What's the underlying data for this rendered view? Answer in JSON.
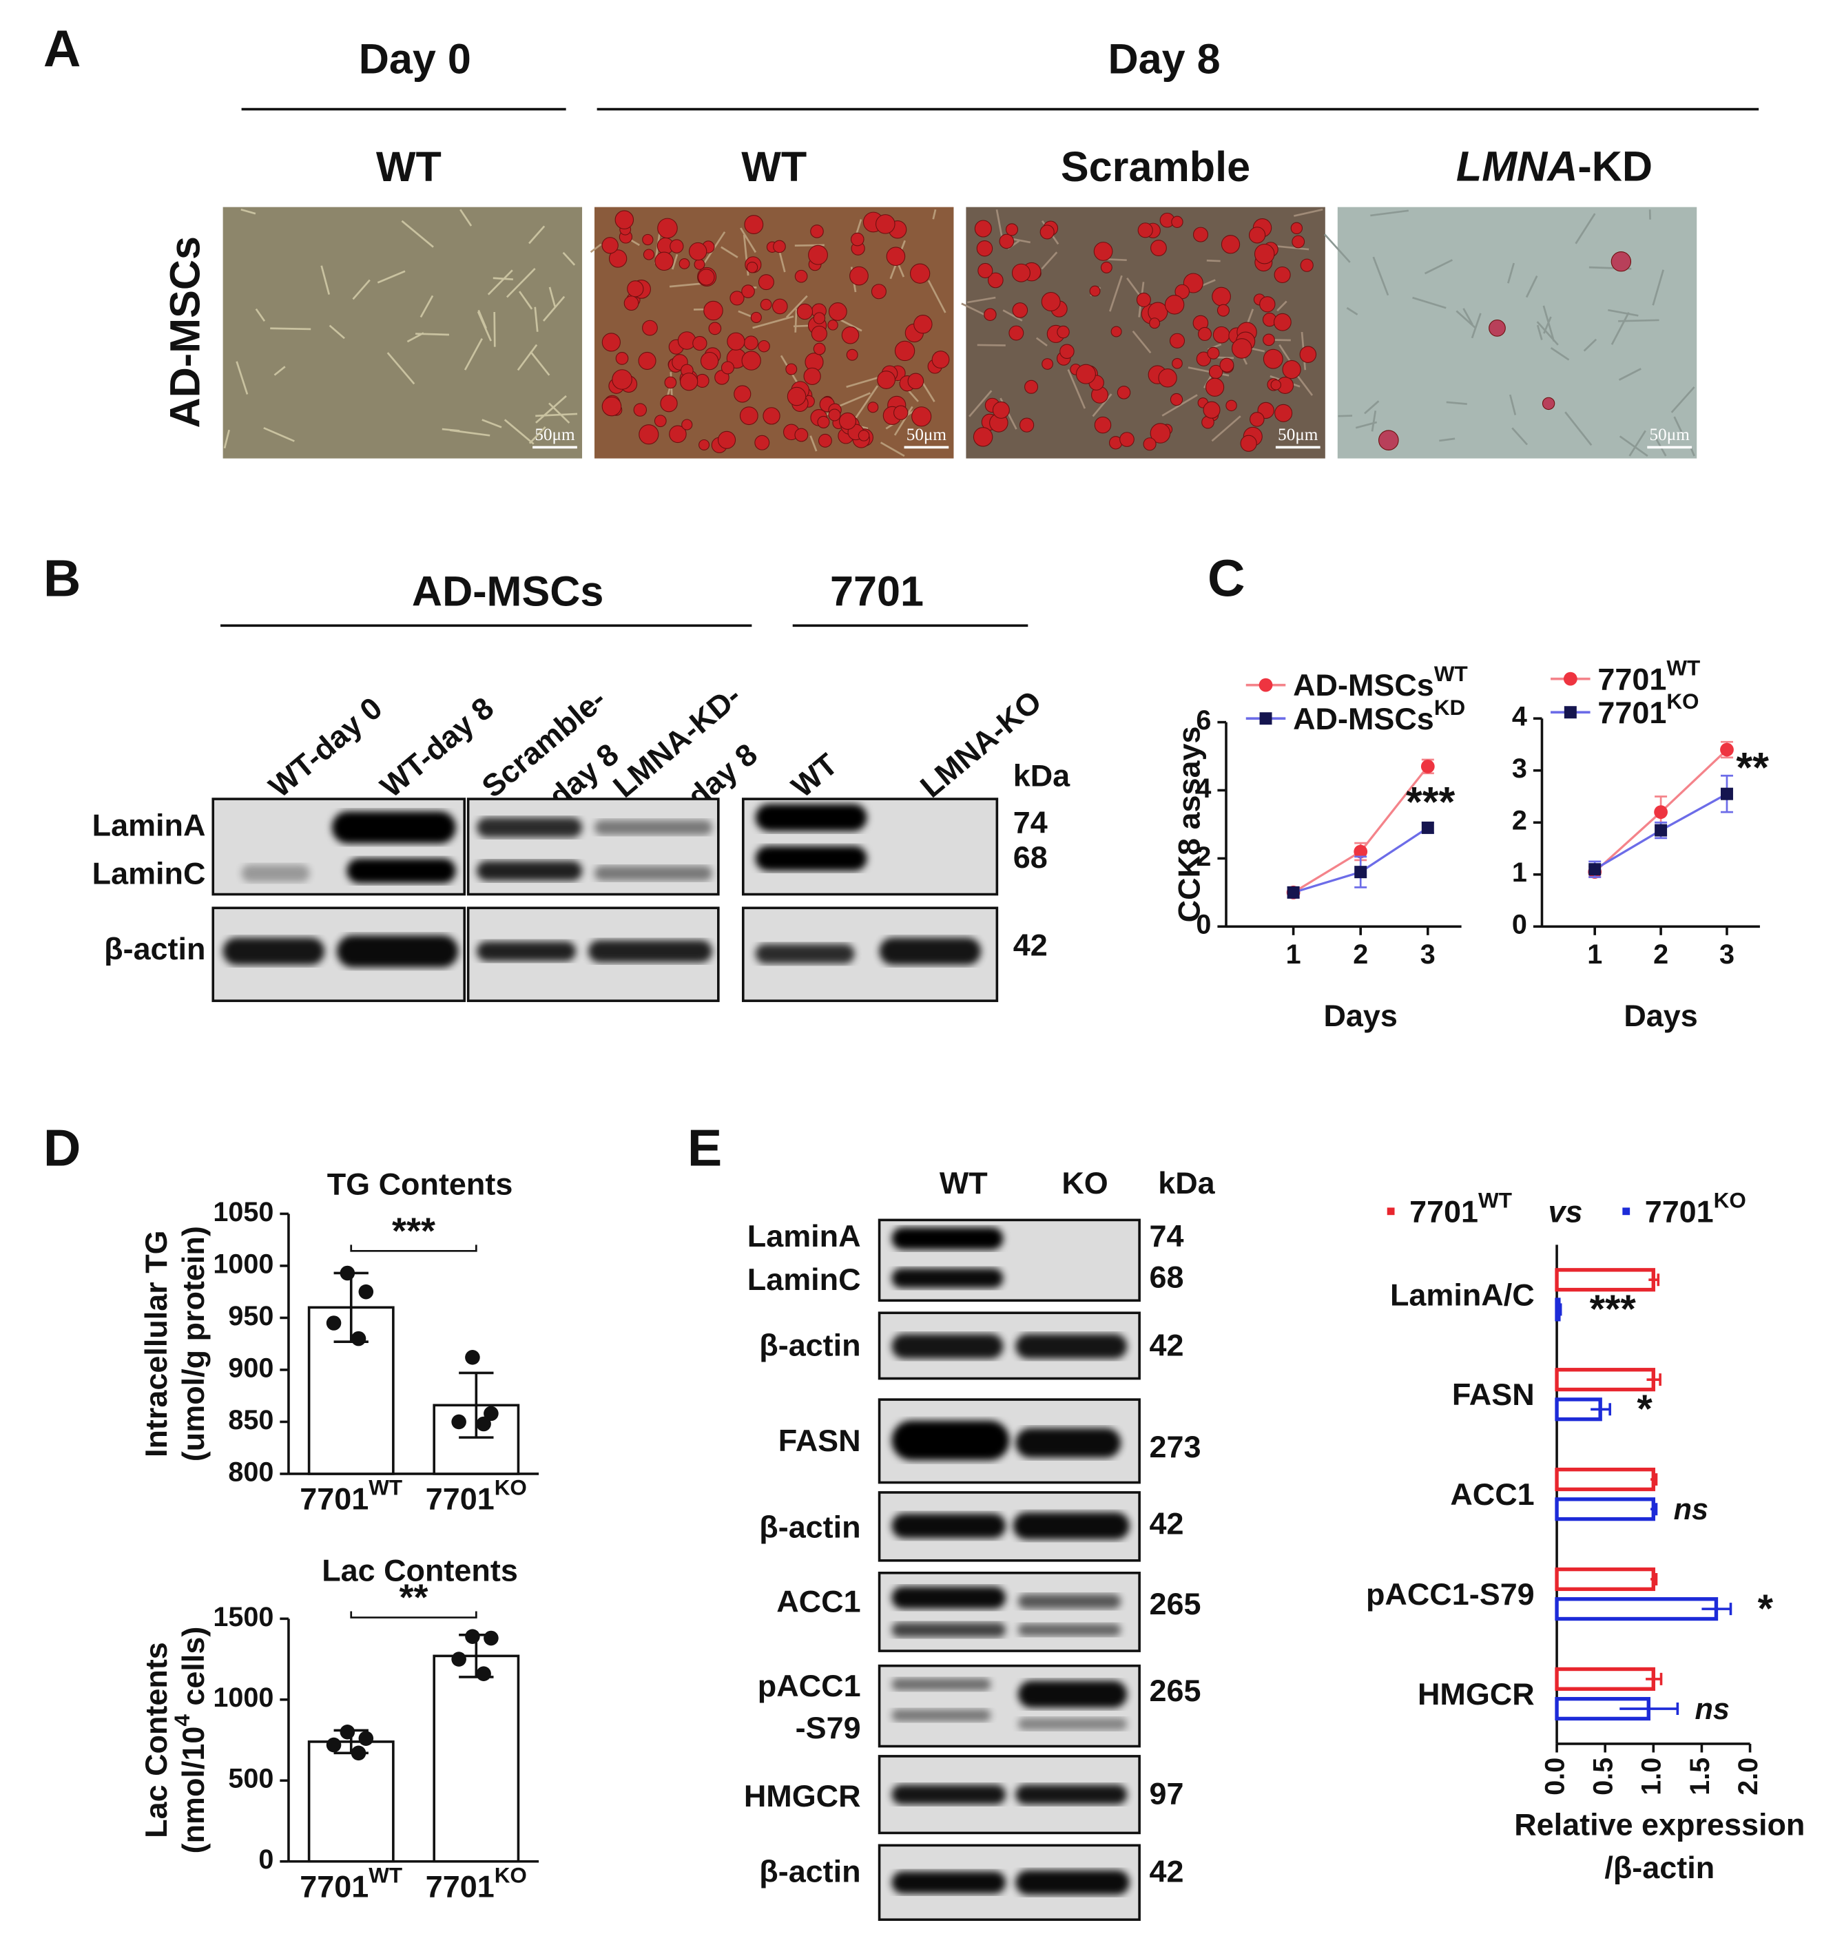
{
  "panel_a": {
    "letter": "A",
    "day0": "Day 0",
    "day8": "Day 8",
    "columns": [
      "WT",
      "WT",
      "Scramble",
      {
        "italic": "LMNA",
        "rest": "-KD"
      }
    ],
    "row_label": "AD-MSCs",
    "scale_bar": "50μm"
  },
  "panel_b": {
    "letter": "B",
    "groups": [
      "AD-MSCs",
      "7701"
    ],
    "lanes": [
      "WT-day 0",
      "WT-day 8",
      "Scramble-",
      "day 8",
      "LMNA-KD-",
      "day 8",
      "WT",
      "LMNA-KO"
    ],
    "kda": "kDa",
    "rows": [
      "LaminA",
      "LaminC",
      "β-actin"
    ],
    "weights": [
      74,
      68,
      42
    ]
  },
  "panel_c": {
    "letter": "C"
  },
  "panel_d": {
    "letter": "D"
  },
  "panel_e": {
    "letter": "E",
    "lanes": [
      "WT",
      "KO"
    ],
    "kda": "kDa",
    "rows": [
      "LaminA",
      "LaminC",
      "β-actin",
      "FASN",
      "β-actin",
      "ACC1",
      "pACC1",
      "-S79",
      "HMGCR",
      "β-actin"
    ],
    "weights": [
      74,
      68,
      42,
      273,
      42,
      265,
      265,
      97,
      42
    ]
  },
  "chart_data": [
    {
      "type": "line",
      "ylabel": "CCK8 assays",
      "xlabel": "Days",
      "x": [
        1,
        2,
        3
      ],
      "xlim": [
        0,
        3.5
      ],
      "xticks": [
        1,
        2,
        3
      ],
      "ylim": [
        0,
        6
      ],
      "yticks": [
        0,
        2,
        4,
        6
      ],
      "series": [
        {
          "name": "AD-MSCs",
          "sup": "WT",
          "color": "#f4838a",
          "marker_color": "#ee3440",
          "marker": "circle",
          "values": [
            1.0,
            2.2,
            4.7
          ],
          "errors": [
            0.15,
            0.25,
            0.2
          ]
        },
        {
          "name": "AD-MSCs",
          "sup": "KD",
          "color": "#6c6ce8",
          "marker_color": "#15154f",
          "marker": "square",
          "values": [
            1.0,
            1.6,
            2.9
          ],
          "errors": [
            0.15,
            0.45,
            0.15
          ]
        }
      ],
      "annotation": "***"
    },
    {
      "type": "line",
      "xlabel": "Days",
      "x": [
        1,
        2,
        3
      ],
      "xlim": [
        0.2,
        3.5
      ],
      "xticks": [
        1,
        2,
        3
      ],
      "ylim": [
        0,
        4
      ],
      "yticks": [
        0,
        1,
        2,
        3,
        4
      ],
      "series": [
        {
          "name": "7701",
          "sup": "WT",
          "color": "#f4838a",
          "marker_color": "#ee3440",
          "marker": "circle",
          "values": [
            1.05,
            2.2,
            3.4
          ],
          "errors": [
            0.1,
            0.3,
            0.15
          ]
        },
        {
          "name": "7701",
          "sup": "KO",
          "color": "#6c6ce8",
          "marker_color": "#15154f",
          "marker": "square",
          "values": [
            1.1,
            1.85,
            2.55
          ],
          "errors": [
            0.15,
            0.15,
            0.35
          ]
        }
      ],
      "annotation": "**"
    },
    {
      "type": "bar",
      "title": "TG Contents",
      "ylabel": [
        {
          "text": "Intracellular TG"
        },
        {
          "text": "(umol/g protein)"
        }
      ],
      "categories": [
        "7701",
        "7701"
      ],
      "category_superscripts": [
        "WT",
        "KO"
      ],
      "values": [
        960,
        866
      ],
      "errors": [
        33,
        31
      ],
      "points": [
        [
          993,
          975,
          945,
          930
        ],
        [
          912,
          858,
          850,
          848
        ]
      ],
      "ylim": [
        800,
        1050
      ],
      "yticks": [
        800,
        850,
        900,
        950,
        1000,
        1050
      ],
      "annotation": "***"
    },
    {
      "type": "bar",
      "title": "Lac Contents",
      "ylabel": [
        {
          "text": "Lac Contents"
        },
        {
          "text": "(nmol/10",
          "sup": "4",
          "tail": " cells)"
        }
      ],
      "categories": [
        "7701",
        "7701"
      ],
      "category_superscripts": [
        "WT",
        "KO"
      ],
      "values": [
        740,
        1270
      ],
      "errors": [
        70,
        130
      ],
      "points": [
        [
          800,
          760,
          720,
          670
        ],
        [
          1390,
          1380,
          1250,
          1160
        ]
      ],
      "ylim": [
        0,
        1500
      ],
      "yticks": [
        0,
        500,
        1000,
        1500
      ],
      "annotation": "**"
    },
    {
      "type": "barh",
      "xlabel": [
        "Relative expression",
        "/β-actin"
      ],
      "categories": [
        "LaminA/C",
        "FASN",
        "ACC1",
        "pACC1-S79",
        "HMGCR"
      ],
      "xlim": [
        0,
        2
      ],
      "xticks": [
        {
          "value": 0,
          "label": "0.0"
        },
        0.5,
        {
          "value": 1,
          "label": "1.0"
        },
        1.5,
        {
          "value": 2,
          "label": "2.0"
        }
      ],
      "legend_joiner": "vs",
      "series": [
        {
          "name": "7701",
          "sup": "WT",
          "color": "#e8262e",
          "values": [
            1.0,
            1.0,
            1.0,
            1.0,
            1.0
          ],
          "errors": [
            0.05,
            0.07,
            0.03,
            0.03,
            0.08
          ]
        },
        {
          "name": "7701",
          "sup": "KO",
          "color": "#1d2bd8",
          "values": [
            0.02,
            0.45,
            1.0,
            1.65,
            0.95
          ],
          "errors": [
            0.02,
            0.1,
            0.03,
            0.15,
            0.3
          ]
        }
      ],
      "annotations": [
        "***",
        "*",
        "ns",
        "*",
        "ns"
      ]
    }
  ]
}
